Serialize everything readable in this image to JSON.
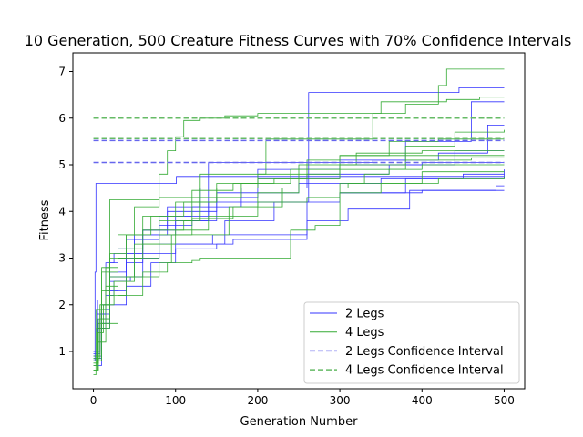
{
  "chart_data": {
    "type": "line",
    "title": "10 Generation, 500 Creature Fitness Curves with 70% Confidence Intervals",
    "xlabel": "Generation Number",
    "ylabel": "Fitness",
    "xlim": [
      -25,
      525
    ],
    "ylim": [
      0.2,
      7.4
    ],
    "xticks": [
      0,
      100,
      200,
      300,
      400,
      500
    ],
    "yticks": [
      1,
      2,
      3,
      4,
      5,
      6,
      7
    ],
    "grid": false,
    "legend_position": "lower right",
    "legend": [
      {
        "label": "2 Legs",
        "color": "#3333ff",
        "style": "solid"
      },
      {
        "label": "4 Legs",
        "color": "#33aa33",
        "style": "solid"
      },
      {
        "label": "2 Legs Confidence Interval",
        "color": "#6666ee",
        "style": "dashed"
      },
      {
        "label": "4 Legs Confidence Interval",
        "color": "#66bb66",
        "style": "dashed"
      }
    ],
    "series": [
      {
        "group": "2 Legs",
        "points": [
          [
            0,
            0.8
          ],
          [
            2,
            2.7
          ],
          [
            3,
            4.6
          ],
          [
            100,
            4.6
          ],
          [
            101,
            4.75
          ],
          [
            500,
            4.75
          ]
        ]
      },
      {
        "group": "2 Legs",
        "points": [
          [
            0,
            0.9
          ],
          [
            5,
            1.5
          ],
          [
            10,
            2.0
          ],
          [
            20,
            2.6
          ],
          [
            35,
            2.6
          ],
          [
            40,
            3.4
          ],
          [
            60,
            3.4
          ],
          [
            80,
            3.7
          ],
          [
            120,
            3.8
          ],
          [
            140,
            4.2
          ],
          [
            260,
            4.2
          ],
          [
            262,
            6.55
          ],
          [
            440,
            6.55
          ],
          [
            445,
            6.65
          ],
          [
            500,
            6.65
          ]
        ]
      },
      {
        "group": "2 Legs",
        "points": [
          [
            0,
            1.0
          ],
          [
            8,
            1.8
          ],
          [
            20,
            2.9
          ],
          [
            30,
            3.2
          ],
          [
            50,
            3.5
          ],
          [
            90,
            4.0
          ],
          [
            150,
            4.3
          ],
          [
            200,
            4.9
          ],
          [
            300,
            5.0
          ],
          [
            400,
            5.05
          ],
          [
            500,
            5.05
          ]
        ]
      },
      {
        "group": "2 Legs",
        "points": [
          [
            0,
            0.9
          ],
          [
            6,
            1.5
          ],
          [
            15,
            2.2
          ],
          [
            25,
            2.5
          ],
          [
            45,
            2.6
          ],
          [
            50,
            3.0
          ],
          [
            80,
            3.3
          ],
          [
            140,
            3.3
          ],
          [
            145,
            3.5
          ],
          [
            250,
            3.5
          ],
          [
            260,
            4.3
          ],
          [
            300,
            4.4
          ],
          [
            380,
            4.7
          ],
          [
            500,
            4.9
          ]
        ]
      },
      {
        "group": "2 Legs",
        "points": [
          [
            0,
            0.85
          ],
          [
            10,
            1.9
          ],
          [
            20,
            2.3
          ],
          [
            40,
            2.6
          ],
          [
            60,
            3.1
          ],
          [
            100,
            3.2
          ],
          [
            150,
            3.3
          ],
          [
            170,
            3.4
          ],
          [
            250,
            3.4
          ],
          [
            260,
            3.8
          ],
          [
            300,
            3.8
          ],
          [
            310,
            4.05
          ],
          [
            380,
            4.05
          ],
          [
            385,
            4.45
          ],
          [
            500,
            4.45
          ]
        ]
      },
      {
        "group": "2 Legs",
        "points": [
          [
            0,
            1.0
          ],
          [
            5,
            2.1
          ],
          [
            15,
            2.9
          ],
          [
            25,
            3.1
          ],
          [
            60,
            3.6
          ],
          [
            100,
            3.9
          ],
          [
            140,
            5.05
          ],
          [
            300,
            5.05
          ],
          [
            340,
            5.1
          ],
          [
            420,
            5.25
          ],
          [
            470,
            5.25
          ],
          [
            480,
            5.85
          ],
          [
            500,
            5.85
          ]
        ]
      },
      {
        "group": "2 Legs",
        "points": [
          [
            0,
            0.7
          ],
          [
            10,
            1.5
          ],
          [
            20,
            2.7
          ],
          [
            40,
            3.1
          ],
          [
            60,
            3.5
          ],
          [
            100,
            3.8
          ],
          [
            150,
            4.4
          ],
          [
            250,
            4.6
          ],
          [
            350,
            4.7
          ],
          [
            450,
            4.8
          ],
          [
            500,
            4.8
          ]
        ]
      },
      {
        "group": "2 Legs",
        "points": [
          [
            0,
            0.95
          ],
          [
            8,
            1.7
          ],
          [
            20,
            2.5
          ],
          [
            40,
            2.9
          ],
          [
            60,
            3.6
          ],
          [
            90,
            4.1
          ],
          [
            130,
            4.5
          ],
          [
            200,
            4.7
          ],
          [
            300,
            5.1
          ],
          [
            380,
            5.5
          ],
          [
            460,
            6.35
          ],
          [
            500,
            6.35
          ]
        ]
      },
      {
        "group": "2 Legs",
        "points": [
          [
            0,
            0.8
          ],
          [
            5,
            1.8
          ],
          [
            15,
            2.3
          ],
          [
            30,
            3.0
          ],
          [
            50,
            3.4
          ],
          [
            80,
            3.9
          ],
          [
            120,
            4.1
          ],
          [
            180,
            4.5
          ],
          [
            260,
            4.8
          ],
          [
            360,
            5.0
          ],
          [
            440,
            5.3
          ],
          [
            500,
            5.3
          ]
        ]
      },
      {
        "group": "2 Legs",
        "points": [
          [
            0,
            0.9
          ],
          [
            10,
            1.6
          ],
          [
            20,
            2.0
          ],
          [
            40,
            2.4
          ],
          [
            70,
            2.9
          ],
          [
            100,
            3.3
          ],
          [
            160,
            3.8
          ],
          [
            220,
            4.2
          ],
          [
            300,
            4.4
          ],
          [
            400,
            4.45
          ],
          [
            490,
            4.55
          ],
          [
            500,
            4.55
          ]
        ]
      },
      {
        "group": "4 Legs",
        "points": [
          [
            0,
            0.5
          ],
          [
            3,
            1.9
          ],
          [
            10,
            2.8
          ],
          [
            20,
            4.25
          ],
          [
            60,
            4.25
          ],
          [
            80,
            4.8
          ],
          [
            90,
            5.3
          ],
          [
            100,
            5.6
          ],
          [
            110,
            5.95
          ],
          [
            130,
            6.0
          ],
          [
            160,
            6.05
          ],
          [
            200,
            6.1
          ],
          [
            300,
            6.1
          ],
          [
            350,
            6.35
          ],
          [
            430,
            6.4
          ],
          [
            470,
            6.45
          ],
          [
            500,
            6.45
          ]
        ]
      },
      {
        "group": "4 Legs",
        "points": [
          [
            0,
            0.6
          ],
          [
            6,
            1.6
          ],
          [
            15,
            2.8
          ],
          [
            30,
            3.2
          ],
          [
            60,
            3.6
          ],
          [
            110,
            3.8
          ],
          [
            130,
            4.8
          ],
          [
            200,
            4.8
          ],
          [
            210,
            5.55
          ],
          [
            300,
            5.55
          ],
          [
            340,
            6.1
          ],
          [
            380,
            6.3
          ],
          [
            420,
            6.7
          ],
          [
            430,
            7.05
          ],
          [
            500,
            7.05
          ]
        ]
      },
      {
        "group": "4 Legs",
        "points": [
          [
            0,
            0.8
          ],
          [
            10,
            2.3
          ],
          [
            20,
            3.0
          ],
          [
            40,
            3.5
          ],
          [
            60,
            3.9
          ],
          [
            100,
            4.2
          ],
          [
            150,
            4.6
          ],
          [
            200,
            4.7
          ],
          [
            260,
            5.1
          ],
          [
            300,
            5.2
          ],
          [
            500,
            5.2
          ]
        ]
      },
      {
        "group": "4 Legs",
        "points": [
          [
            0,
            0.7
          ],
          [
            5,
            1.2
          ],
          [
            15,
            1.6
          ],
          [
            30,
            2.2
          ],
          [
            60,
            2.7
          ],
          [
            90,
            2.9
          ],
          [
            95,
            3.5
          ],
          [
            160,
            3.5
          ],
          [
            165,
            4.1
          ],
          [
            200,
            4.2
          ],
          [
            260,
            4.3
          ],
          [
            300,
            4.4
          ],
          [
            350,
            4.6
          ],
          [
            420,
            4.7
          ],
          [
            500,
            4.75
          ]
        ]
      },
      {
        "group": "4 Legs",
        "points": [
          [
            0,
            0.9
          ],
          [
            8,
            2.0
          ],
          [
            20,
            3.1
          ],
          [
            40,
            3.5
          ],
          [
            70,
            3.9
          ],
          [
            110,
            4.2
          ],
          [
            150,
            4.5
          ],
          [
            200,
            4.8
          ],
          [
            250,
            5.0
          ],
          [
            320,
            5.25
          ],
          [
            400,
            5.3
          ],
          [
            500,
            5.3
          ]
        ]
      },
      {
        "group": "4 Legs",
        "points": [
          [
            0,
            0.8
          ],
          [
            10,
            1.5
          ],
          [
            20,
            2.2
          ],
          [
            40,
            2.6
          ],
          [
            80,
            2.9
          ],
          [
            120,
            2.95
          ],
          [
            130,
            3.0
          ],
          [
            230,
            3.0
          ],
          [
            240,
            3.6
          ],
          [
            270,
            3.7
          ],
          [
            300,
            4.6
          ],
          [
            330,
            4.8
          ],
          [
            360,
            4.9
          ],
          [
            400,
            5.0
          ],
          [
            500,
            5.0
          ]
        ]
      },
      {
        "group": "4 Legs",
        "points": [
          [
            0,
            0.75
          ],
          [
            6,
            1.7
          ],
          [
            20,
            2.6
          ],
          [
            50,
            3.3
          ],
          [
            80,
            3.8
          ],
          [
            120,
            4.3
          ],
          [
            180,
            4.6
          ],
          [
            240,
            4.9
          ],
          [
            300,
            5.2
          ],
          [
            360,
            5.5
          ],
          [
            420,
            5.55
          ],
          [
            500,
            5.55
          ]
        ]
      },
      {
        "group": "4 Legs",
        "points": [
          [
            0,
            0.85
          ],
          [
            8,
            1.9
          ],
          [
            15,
            2.4
          ],
          [
            30,
            3.0
          ],
          [
            60,
            3.3
          ],
          [
            100,
            3.6
          ],
          [
            140,
            3.9
          ],
          [
            200,
            4.4
          ],
          [
            250,
            4.8
          ],
          [
            300,
            5.0
          ],
          [
            380,
            5.4
          ],
          [
            440,
            5.7
          ],
          [
            500,
            5.75
          ]
        ]
      },
      {
        "group": "4 Legs",
        "points": [
          [
            0,
            0.6
          ],
          [
            5,
            1.4
          ],
          [
            12,
            2.0
          ],
          [
            25,
            2.5
          ],
          [
            50,
            3.0
          ],
          [
            80,
            3.5
          ],
          [
            120,
            3.85
          ],
          [
            170,
            4.1
          ],
          [
            230,
            4.5
          ],
          [
            310,
            4.6
          ],
          [
            400,
            4.85
          ],
          [
            500,
            4.85
          ]
        ]
      },
      {
        "group": "4 Legs",
        "points": [
          [
            0,
            0.7
          ],
          [
            4,
            1.5
          ],
          [
            10,
            2.7
          ],
          [
            30,
            3.5
          ],
          [
            50,
            4.1
          ],
          [
            80,
            4.3
          ],
          [
            120,
            4.45
          ],
          [
            170,
            4.6
          ],
          [
            220,
            4.7
          ],
          [
            300,
            4.9
          ],
          [
            380,
            5.1
          ],
          [
            460,
            5.15
          ],
          [
            500,
            5.15
          ]
        ]
      }
    ],
    "confidence_intervals": [
      {
        "group": "2 Legs",
        "values": [
          5.05,
          5.52
        ],
        "x_range": [
          0,
          500
        ]
      },
      {
        "group": "4 Legs",
        "values": [
          5.56,
          6.0
        ],
        "x_range": [
          0,
          500
        ]
      }
    ]
  }
}
